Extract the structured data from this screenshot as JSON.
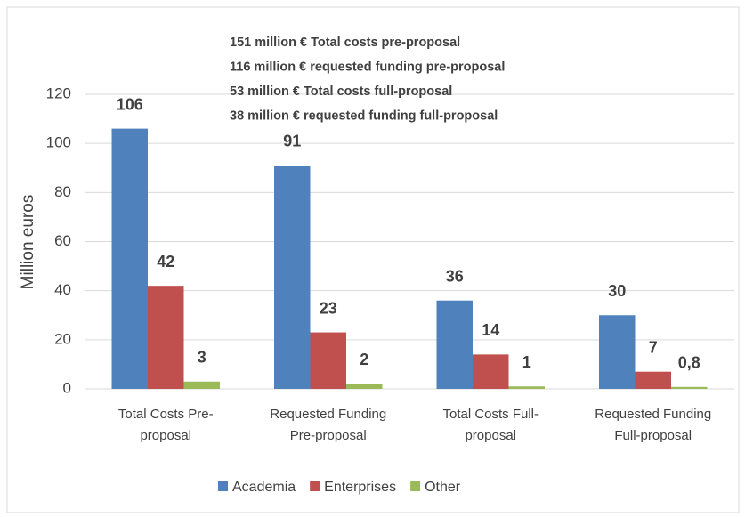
{
  "chart_data": {
    "type": "bar",
    "annotations": [
      "151 million € Total costs  pre-proposal",
      "116 million € requested funding pre-proposal",
      "53 million € Total costs  full-proposal",
      "38 million € requested funding full-proposal"
    ],
    "y_label": "Million euros",
    "categories": [
      [
        "Total Costs Pre-",
        "proposal"
      ],
      [
        "Requested Funding",
        "Pre-proposal"
      ],
      [
        "Total Costs Full-",
        "proposal"
      ],
      [
        "Requested Funding",
        "Full-proposal"
      ]
    ],
    "series": [
      {
        "name": "Academia",
        "color": "#4f81bd",
        "values": [
          106,
          91,
          36,
          30
        ]
      },
      {
        "name": "Enterprises",
        "color": "#c0504d",
        "values": [
          42,
          23,
          14,
          7
        ]
      },
      {
        "name": "Other",
        "color": "#9bbb59",
        "values": [
          3,
          2,
          1,
          0.8
        ],
        "value_labels": [
          "3",
          "2",
          "1",
          "0,8"
        ]
      }
    ],
    "ylim": [
      0,
      120
    ],
    "yticks": [
      0,
      20,
      40,
      60,
      80,
      100,
      120
    ],
    "grid": true,
    "legend": "bottom"
  }
}
